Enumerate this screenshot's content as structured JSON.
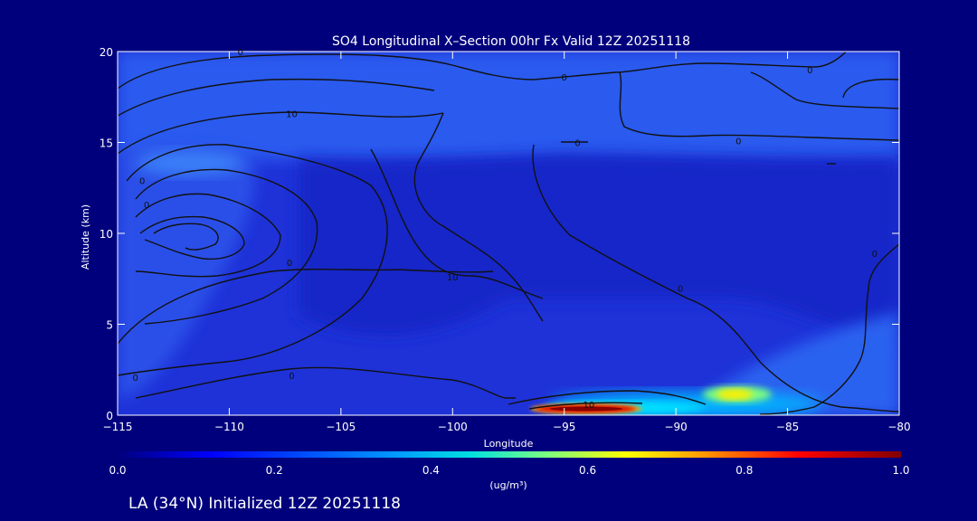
{
  "colors": {
    "background": "#00007d",
    "text": "#ffffff",
    "contour": "#111111"
  },
  "chart_data": {
    "type": "heatmap",
    "title": "SO4 Longitudinal X–Section 00hr  Fx Valid 12Z 20251118",
    "xlabel": "Longitude",
    "ylabel": "Altitude (km)",
    "xlim": [
      -115,
      -80
    ],
    "ylim": [
      0,
      20
    ],
    "x_ticks": [
      -115,
      -110,
      -105,
      -100,
      -95,
      -90,
      -85,
      -80
    ],
    "x_tick_labels": [
      "−115",
      "−110",
      "−105",
      "−100",
      "−95",
      "−90",
      "−85",
      "−80"
    ],
    "y_ticks": [
      0,
      5,
      10,
      15,
      20
    ],
    "y_tick_labels": [
      "0",
      "5",
      "10",
      "15",
      "20"
    ],
    "grid": false,
    "contour_labels": [
      {
        "text": "0",
        "x": -109.5,
        "y": 20
      },
      {
        "text": "0",
        "x": -95,
        "y": 18.6
      },
      {
        "text": "0",
        "x": -84,
        "y": 19
      },
      {
        "text": "10",
        "x": -107.2,
        "y": 16.6
      },
      {
        "text": "0",
        "x": -94.4,
        "y": 15
      },
      {
        "text": "0",
        "x": -87.2,
        "y": 15.1
      },
      {
        "text": "0",
        "x": -113.9,
        "y": 12.9
      },
      {
        "text": "0",
        "x": -113.7,
        "y": 11.6
      },
      {
        "text": "0",
        "x": -107.3,
        "y": 8.4
      },
      {
        "text": "10",
        "x": -100,
        "y": 7.6
      },
      {
        "text": "0",
        "x": -89.8,
        "y": 7
      },
      {
        "text": "0",
        "x": -81.1,
        "y": 8.9
      },
      {
        "text": "0",
        "x": -114.2,
        "y": 2.1
      },
      {
        "text": "0",
        "x": -107.2,
        "y": 2.2
      },
      {
        "text": "10",
        "x": -93.9,
        "y": 0.6
      }
    ],
    "colorbar": {
      "min": 0.0,
      "max": 1.0,
      "ticks": [
        "0.0",
        "0.2",
        "0.4",
        "0.6",
        "0.8",
        "1.0"
      ],
      "unit": "(ug/m³)"
    }
  },
  "footer": {
    "caption": "LA (34°N) Initialized 12Z 20251118"
  }
}
